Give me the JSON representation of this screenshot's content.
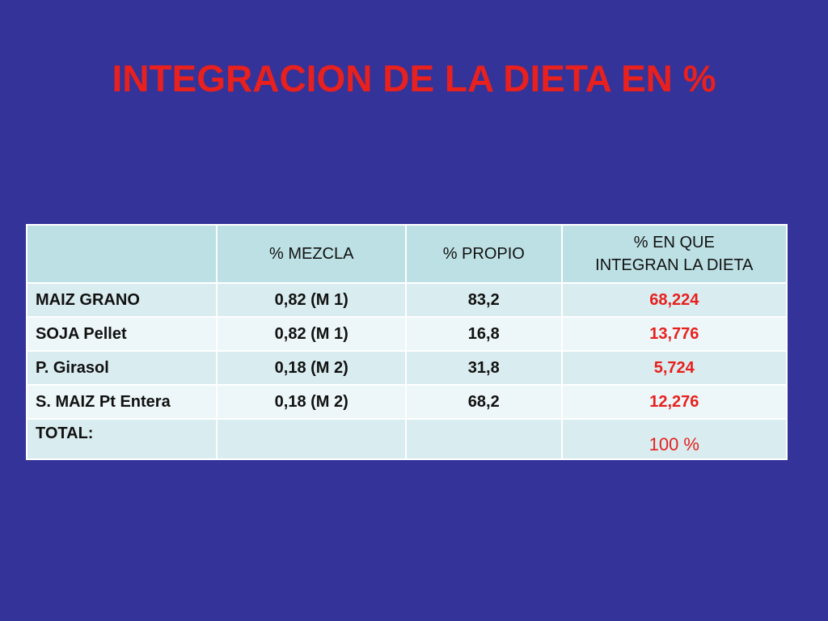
{
  "slide": {
    "title": "INTEGRACION DE LA DIETA EN %"
  },
  "table": {
    "headers": [
      "",
      "% MEZCLA",
      "% PROPIO",
      "% EN QUE INTEGRAN LA DIETA"
    ],
    "rows": [
      {
        "name": "MAIZ GRANO",
        "mezcla": "0,82 (M 1)",
        "propio": "83,2",
        "integran": "68,224"
      },
      {
        "name": "SOJA Pellet",
        "mezcla": "0,82 (M 1)",
        "propio": "16,8",
        "integran": "13,776"
      },
      {
        "name": "P. Girasol",
        "mezcla": "0,18 (M 2)",
        "propio": "31,8",
        "integran": "5,724"
      },
      {
        "name": "S. MAIZ Pt Entera",
        "mezcla": "0,18 (M 2)",
        "propio": "68,2",
        "integran": "12,276"
      }
    ],
    "total": {
      "label": "TOTAL:",
      "mezcla": "",
      "propio": "",
      "value": "100 %"
    }
  },
  "colors": {
    "background": "#333399",
    "title": "#e8201e",
    "highlight": "#e8201e",
    "header_fill": "#bde0e4",
    "row_fill_odd": "#d9ecef",
    "row_fill_even": "#edf6f8"
  }
}
